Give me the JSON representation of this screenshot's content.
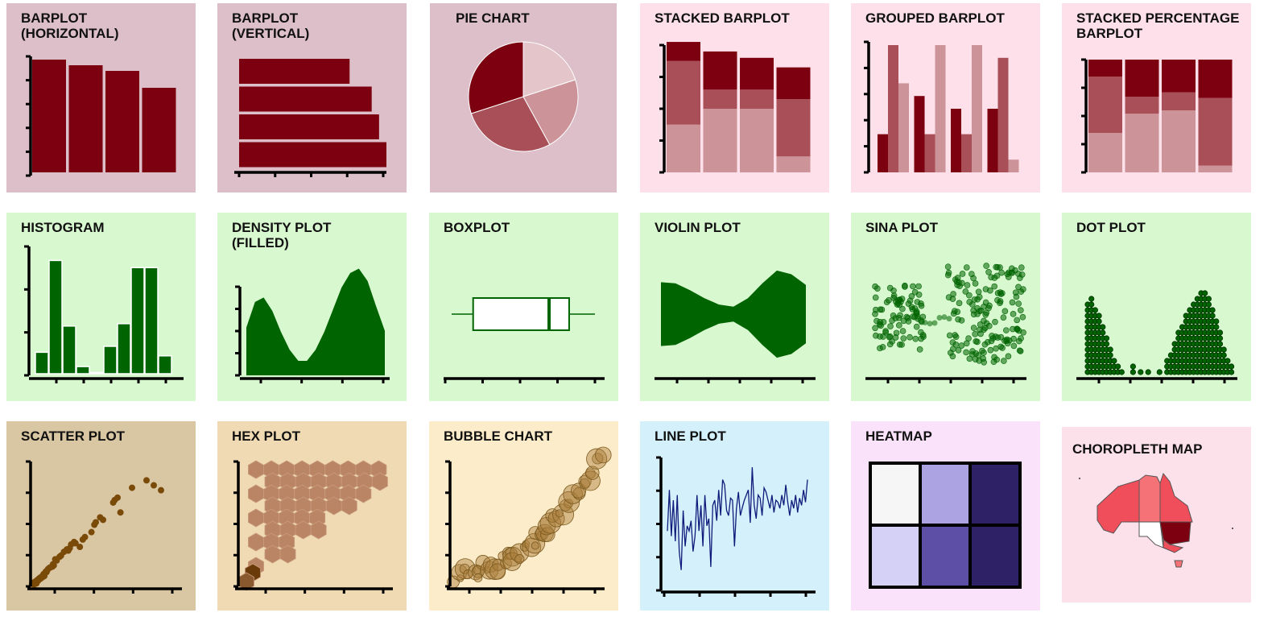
{
  "theme": {
    "row1_dark": "#dcbfc9",
    "row1_light": "#fde0e9",
    "row2": "#d8f8d0",
    "row3_a": "#d9c6a3",
    "row3_b": "#efdab4",
    "row3_c": "#fdecc9",
    "line_bg": "#d4f0fb",
    "heat_bg": "#fbe2fb",
    "map_bg": "#fde1ea",
    "maroon": "#7d0010",
    "maroon_mid": "#a84f58",
    "maroon_light": "#cc9399",
    "maroon_pale": "#e4c5ca",
    "green": "#006400",
    "brown": "#7a4a08",
    "hex_fill": "#b98565",
    "bubble": "#a87c3a",
    "line": "#101a7a",
    "heat_dark": "#2e2166",
    "heat_mid": "#5d4ea6",
    "heat_light": "#aca3e3",
    "heat_pale": "#d5d0f5",
    "heat_white": "#f6f6f6",
    "map_bright": "#f04e5a",
    "map_pink": "#f57277",
    "map_dark": "#7d0010"
  },
  "tiles": [
    {
      "id": "barplot-horizontal",
      "title": "BARPLOT\n(HORIZONTAL)"
    },
    {
      "id": "barplot-vertical",
      "title": "BARPLOT\n(VERTICAL)"
    },
    {
      "id": "pie-chart",
      "title": "PIE CHART"
    },
    {
      "id": "stacked-barplot",
      "title": "STACKED BARPLOT"
    },
    {
      "id": "grouped-barplot",
      "title": "GROUPED BARPLOT"
    },
    {
      "id": "stacked-percentage-barplot",
      "title": "STACKED PERCENTAGE\nBARPLOT"
    },
    {
      "id": "histogram",
      "title": "HISTOGRAM"
    },
    {
      "id": "density-plot",
      "title": "DENSITY PLOT\n(FILLED)"
    },
    {
      "id": "boxplot",
      "title": "BOXPLOT"
    },
    {
      "id": "violin-plot",
      "title": "VIOLIN PLOT"
    },
    {
      "id": "sina-plot",
      "title": "SINA PLOT"
    },
    {
      "id": "dot-plot",
      "title": "DOT PLOT"
    },
    {
      "id": "scatter-plot",
      "title": "SCATTER PLOT"
    },
    {
      "id": "hex-plot",
      "title": "HEX PLOT"
    },
    {
      "id": "bubble-chart",
      "title": "BUBBLE CHART"
    },
    {
      "id": "line-plot",
      "title": "LINE PLOT"
    },
    {
      "id": "heatmap",
      "title": "HEATMAP"
    },
    {
      "id": "choropleth-map",
      "title": "CHOROPLETH MAP"
    }
  ],
  "chart_data": [
    {
      "type": "bar",
      "orientation": "vertical-bars",
      "values": [
        4.0,
        3.8,
        3.6,
        3.0
      ],
      "ylim": [
        0,
        4
      ]
    },
    {
      "type": "bar",
      "orientation": "horizontal-bars",
      "values": [
        3.0,
        3.6,
        3.8,
        4.0
      ],
      "xlim": [
        0,
        4
      ]
    },
    {
      "type": "pie",
      "values": [
        20,
        22,
        28,
        30
      ]
    },
    {
      "type": "bar",
      "stacked": true,
      "series": [
        {
          "values": [
            1.5,
            2.0,
            2.0,
            0.5
          ]
        },
        {
          "values": [
            2.0,
            0.6,
            0.6,
            1.8
          ]
        },
        {
          "values": [
            0.6,
            1.2,
            1.0,
            1.0
          ]
        }
      ],
      "ylim": [
        0,
        4
      ]
    },
    {
      "type": "bar",
      "grouped": true,
      "series": [
        {
          "values": [
            0.6,
            1.2,
            1.0,
            1.0
          ]
        },
        {
          "values": [
            2.0,
            0.6,
            0.6,
            1.8
          ]
        },
        {
          "values": [
            1.4,
            2.0,
            2.0,
            0.2
          ]
        }
      ],
      "ylim": [
        0,
        2
      ]
    },
    {
      "type": "bar",
      "stacked_percent": true,
      "series": [
        {
          "values": [
            35,
            52,
            55,
            6
          ]
        },
        {
          "values": [
            50,
            15,
            16,
            60
          ]
        },
        {
          "values": [
            15,
            33,
            29,
            34
          ]
        }
      ],
      "ylim": [
        0,
        100
      ]
    },
    {
      "type": "bar",
      "histogram": true,
      "values": [
        0.18,
        0.95,
        0.4,
        0.06,
        0.01,
        0.23,
        0.42,
        0.89,
        0.89,
        0.15
      ],
      "ylim": [
        0,
        1
      ]
    },
    {
      "type": "area",
      "x": [
        0,
        0.5,
        1,
        1.5,
        2,
        2.5,
        3,
        3.5,
        4,
        4.5,
        5,
        5.5,
        6,
        6.5,
        7,
        7.5,
        8
      ],
      "values": [
        0.43,
        0.66,
        0.7,
        0.58,
        0.39,
        0.23,
        0.13,
        0.13,
        0.23,
        0.39,
        0.59,
        0.79,
        0.92,
        0.96,
        0.85,
        0.62,
        0.4
      ],
      "ylim": [
        0,
        1
      ]
    },
    {
      "type": "box",
      "min": 0,
      "q1": 0.15,
      "median": 0.68,
      "q3": 0.82,
      "max": 1.0
    },
    {
      "type": "violin",
      "x": [
        0,
        0.1,
        0.2,
        0.3,
        0.4,
        0.5,
        0.6,
        0.7,
        0.8,
        0.9,
        1.0
      ],
      "width": [
        0.6,
        0.58,
        0.45,
        0.3,
        0.18,
        0.14,
        0.3,
        0.58,
        0.82,
        0.75,
        0.55
      ]
    },
    {
      "type": "scatter",
      "jitter": true,
      "groups": 2
    },
    {
      "type": "scatter",
      "dotplot": true,
      "counts": [
        13,
        14,
        12,
        11,
        9,
        7,
        5,
        3,
        2,
        1,
        0,
        0,
        2,
        0,
        1,
        0,
        1,
        0,
        0,
        1,
        0,
        3,
        4,
        6,
        8,
        9,
        11,
        12,
        13,
        14,
        15,
        15,
        14,
        12,
        10,
        8,
        5,
        3,
        2
      ]
    },
    {
      "type": "scatter",
      "x": [
        0.1,
        0.2,
        0.25,
        0.3,
        0.35,
        0.4,
        0.45,
        0.5,
        0.55,
        0.6,
        0.65,
        0.7,
        0.75,
        0.8,
        0.85,
        0.9,
        0.95,
        1.0,
        1.05,
        1.1,
        1.15,
        1.2,
        1.3,
        1.4,
        1.5,
        1.55,
        1.6,
        1.7,
        1.8,
        2.0,
        2.1,
        2.3,
        2.5,
        2.6,
        2.7,
        2.8,
        3.0,
        3.1,
        3.4,
        3.6,
        3.75,
        4.2,
        4.4,
        4.5,
        4.8,
        5.0,
        5.7,
        5.8,
        6.0,
        6.2,
        7.0,
        8.0,
        8.5,
        9.0
      ],
      "values": [
        0.1,
        0.15,
        0.08,
        0.18,
        0.2,
        0.12,
        0.25,
        0.22,
        0.3,
        0.28,
        0.35,
        0.32,
        0.38,
        0.36,
        0.45,
        0.5,
        0.42,
        0.55,
        0.6,
        0.58,
        0.65,
        0.7,
        0.75,
        0.78,
        0.8,
        0.9,
        0.85,
        1.1,
        1.05,
        1.2,
        1.25,
        1.4,
        1.5,
        1.45,
        1.55,
        1.7,
        1.8,
        1.75,
        1.6,
        1.9,
        2.0,
        2.2,
        2.5,
        2.6,
        2.8,
        2.7,
        3.4,
        3.5,
        3.6,
        3.0,
        4.0,
        4.3,
        4.1,
        3.9
      ],
      "xlim": [
        0,
        10
      ],
      "ylim": [
        0,
        5
      ]
    },
    {
      "type": "heatmap",
      "hex": true
    },
    {
      "type": "scatter",
      "bubble": true
    },
    {
      "type": "line",
      "values": [
        0.5,
        0.9,
        0.45,
        0.8,
        0.4,
        0.85,
        0.3,
        0.12,
        0.7,
        0.35,
        0.55,
        0.5,
        0.6,
        0.3,
        0.45,
        0.85,
        0.5,
        0.75,
        0.35,
        0.85,
        0.55,
        0.62,
        0.15,
        0.75,
        0.8,
        0.6,
        0.9,
        0.65,
        1.0,
        0.95,
        0.7,
        0.65,
        0.82,
        0.8,
        0.35,
        0.72,
        0.88,
        0.65,
        0.73,
        0.8,
        0.85,
        0.9,
        0.58,
        1.12,
        0.75,
        0.62,
        0.85,
        0.82,
        0.65,
        0.92,
        0.88,
        0.8,
        0.72,
        0.85,
        0.68,
        0.8,
        0.78,
        0.72,
        0.85,
        0.75,
        0.95,
        0.78,
        0.65,
        0.8,
        0.72,
        0.85,
        0.68,
        0.82,
        0.75,
        0.9,
        0.78,
        1.0
      ]
    },
    {
      "type": "heatmap",
      "values": [
        [
          0.0,
          0.45,
          1.0
        ],
        [
          0.2,
          0.7,
          1.0
        ]
      ]
    },
    {
      "type": "map",
      "regions": [
        "wa",
        "nt",
        "qld",
        "sa",
        "nsw",
        "vic",
        "tas"
      ]
    }
  ]
}
